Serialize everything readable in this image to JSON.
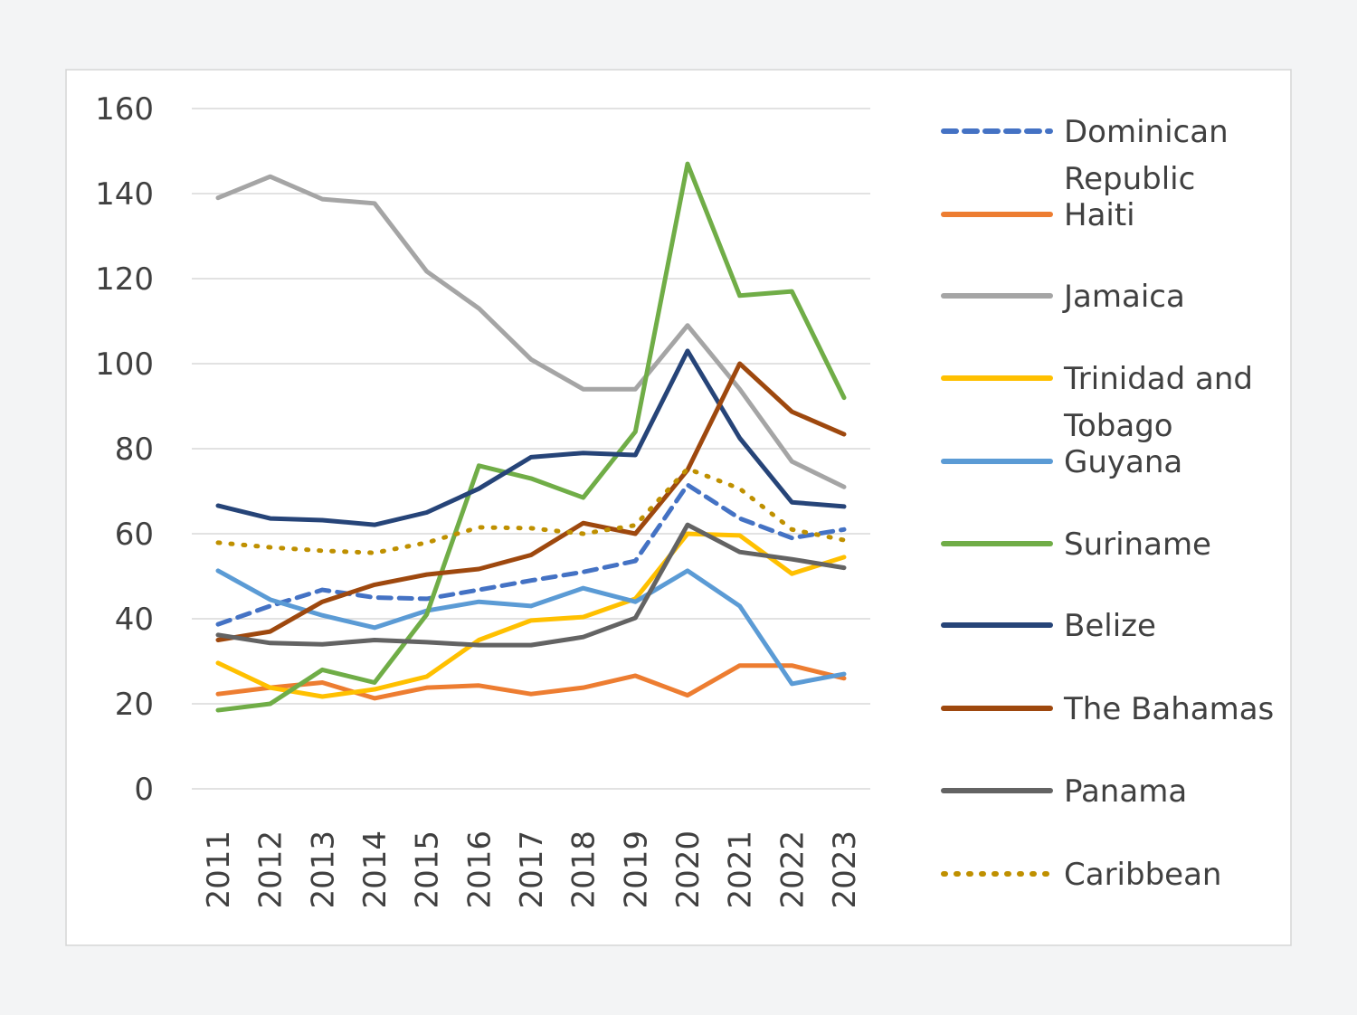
{
  "chart_data": {
    "type": "line",
    "title": "",
    "xlabel": "",
    "ylabel": "",
    "ylim": [
      0,
      160
    ],
    "yticks": [
      0,
      20,
      40,
      60,
      80,
      100,
      120,
      140,
      160
    ],
    "grid": true,
    "legend_position": "right",
    "x": [
      "2011",
      "2012",
      "2013",
      "2014",
      "2015",
      "2016",
      "2017",
      "2018",
      "2019",
      "2020",
      "2021",
      "2022",
      "2023"
    ],
    "series": [
      {
        "name": "Dominican Republic",
        "color": "#4472C4",
        "style": "dashed",
        "values": [
          38.7,
          43,
          46.8,
          45,
          44.7,
          46.8,
          49,
          51,
          53.6,
          71.5,
          63.6,
          59,
          61
        ]
      },
      {
        "name": "Haiti",
        "color": "#ED7D31",
        "style": "solid",
        "values": [
          22.3,
          23.8,
          25,
          21.3,
          23.8,
          24.3,
          22.3,
          23.8,
          26.6,
          22,
          29,
          29,
          26
        ]
      },
      {
        "name": "Jamaica",
        "color": "#A5A5A5",
        "style": "solid",
        "values": [
          139,
          144,
          138.7,
          137.7,
          121.7,
          113,
          101,
          94,
          94,
          109,
          94,
          77,
          71
        ]
      },
      {
        "name": "Trinidad and Tobago",
        "color": "#FFC000",
        "style": "solid",
        "values": [
          29.6,
          23.8,
          21.7,
          23.4,
          26.4,
          35,
          39.6,
          40.4,
          44.7,
          60,
          59.6,
          50.6,
          54.5
        ]
      },
      {
        "name": "Guyana",
        "color": "#5B9BD5",
        "style": "solid",
        "values": [
          51.3,
          44.5,
          40.8,
          37.9,
          41.9,
          44,
          43,
          47.2,
          44,
          51.3,
          43,
          24.7,
          27
        ]
      },
      {
        "name": "Suriname",
        "color": "#70AD47",
        "style": "solid",
        "values": [
          18.5,
          20,
          28,
          25,
          41,
          76,
          73,
          68.5,
          84,
          147,
          116,
          117,
          92
        ]
      },
      {
        "name": "Belize",
        "color": "#264478",
        "style": "solid",
        "values": [
          66.6,
          63.6,
          63.2,
          62.1,
          65,
          70.6,
          78,
          79,
          78.5,
          103,
          82.5,
          67.4,
          66.4
        ]
      },
      {
        "name": "The Bahamas",
        "color": "#9E480E",
        "style": "solid",
        "values": [
          35,
          37,
          44,
          48,
          50.4,
          51.7,
          55,
          62.5,
          60,
          75,
          100,
          88.7,
          83.4
        ]
      },
      {
        "name": "Panama",
        "color": "#636363",
        "style": "solid",
        "values": [
          36.2,
          34.3,
          34,
          35,
          34.5,
          33.8,
          33.8,
          35.7,
          40.2,
          62.1,
          55.7,
          54,
          52
        ]
      },
      {
        "name": "Caribbean",
        "color": "#BF9000",
        "style": "dotted",
        "values": [
          57.9,
          56.8,
          56,
          55.5,
          57.9,
          61.5,
          61.3,
          60,
          62,
          75.3,
          70.6,
          61,
          58.5
        ]
      }
    ]
  }
}
